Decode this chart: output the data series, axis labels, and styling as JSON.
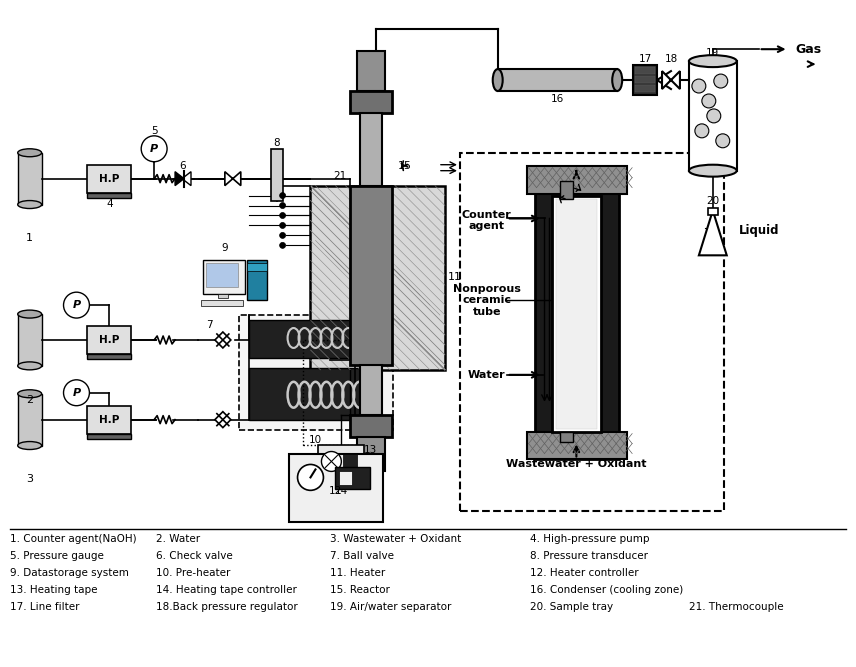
{
  "bg_color": "#ffffff",
  "legend_lines": [
    [
      "1. Counter agent(NaOH)",
      "2. Water",
      "3. Wastewater + Oxidant",
      "4. High-pressure pump"
    ],
    [
      "5. Pressure gauge",
      "6. Check valve",
      "7. Ball valve",
      "8. Pressure transducer"
    ],
    [
      "9. Datastorage system",
      "10. Pre-heater",
      "11. Heater",
      "12. Heater controller"
    ],
    [
      "13. Heating tape",
      "14. Heating tape controller",
      "15. Reactor",
      "16. Condenser (cooling zone)"
    ],
    [
      "17. Line filter",
      "18.Back pressure regulator",
      "19. Air/water separator",
      "20. Sample tray",
      "21. Thermocouple"
    ]
  ]
}
